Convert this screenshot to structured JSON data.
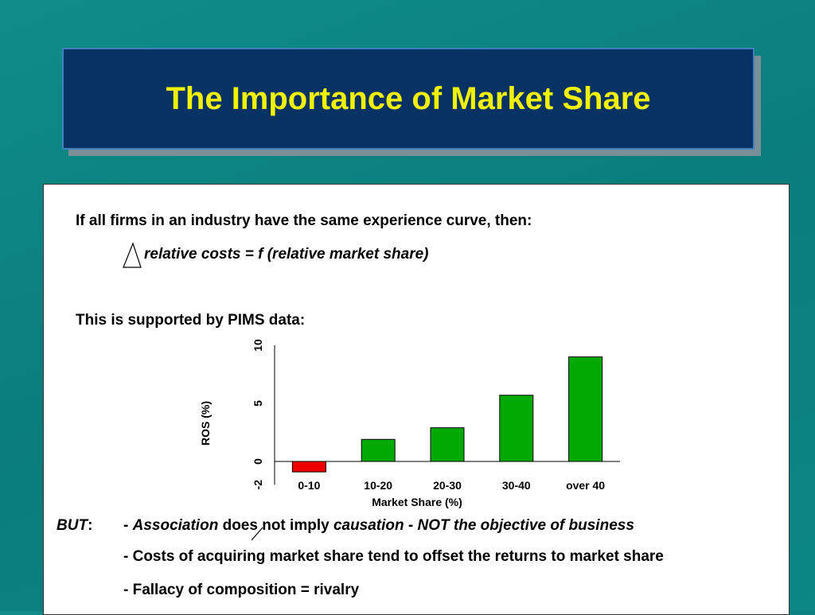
{
  "title": "The Importance of Market Share",
  "intro": "If all firms in an industry have the same experience curve, then:",
  "formula": "relative costs  =  f (relative market share)",
  "supported": "This is supported by PIMS data:",
  "but": {
    "label": "BUT",
    "colon": ":",
    "dash1": "- ",
    "association": "Association",
    "mid": " does not imply ",
    "causation": "causation - NOT the objective of business",
    "line2": "- Costs of acquiring market share tend to offset the returns to market share",
    "line3": "- Fallacy of composition = rivalry"
  },
  "colors": {
    "background": "#0a7d7c",
    "title_bg": "#063363",
    "title_text": "#f2f200",
    "bar_positive": "#00aa00",
    "bar_negative": "#ee0000"
  },
  "chart_data": {
    "type": "bar",
    "categories": [
      "0-10",
      "10-20",
      "20-30",
      "30-40",
      "over 40"
    ],
    "values": [
      -0.9,
      1.9,
      2.9,
      5.7,
      9.0
    ],
    "xlabel": "Market Share (%)",
    "ylabel": "ROS (%)",
    "ylim": [
      -2,
      10
    ],
    "yticks": [
      "-2",
      "0",
      "5",
      "10"
    ],
    "grid": false
  }
}
